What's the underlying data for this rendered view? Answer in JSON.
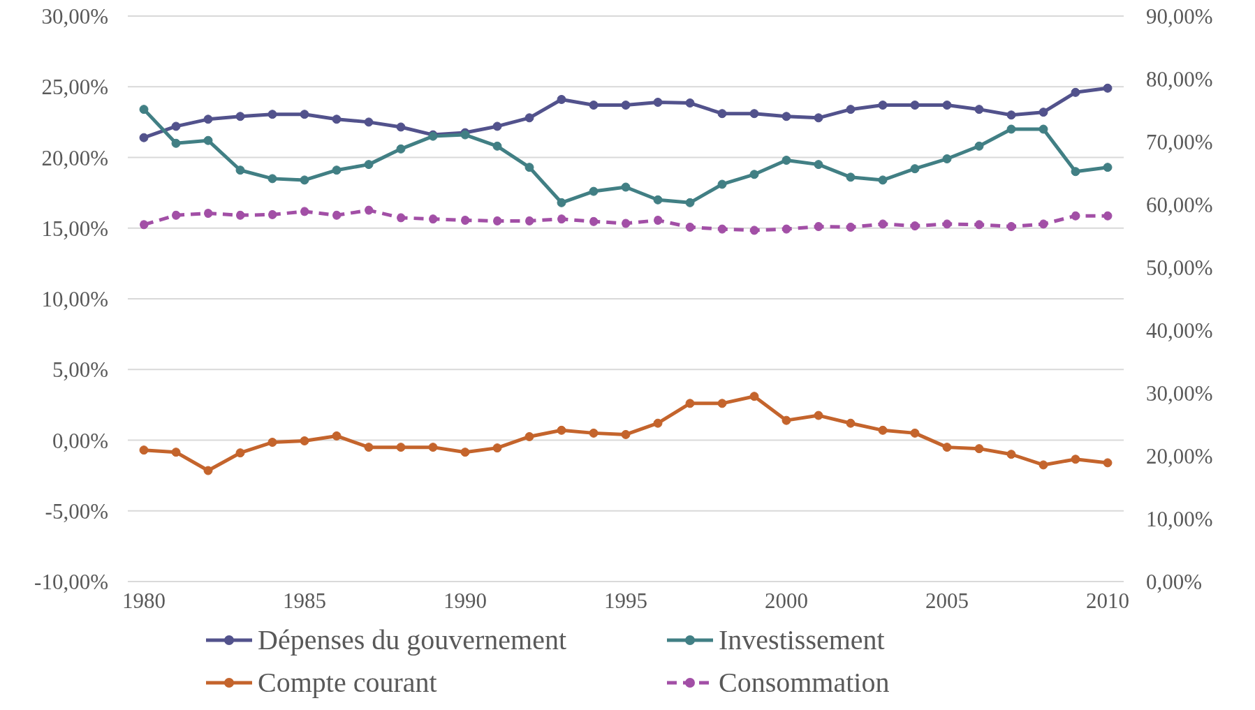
{
  "chart_data": {
    "type": "line",
    "x": [
      1980,
      1981,
      1982,
      1983,
      1984,
      1985,
      1986,
      1987,
      1988,
      1989,
      1990,
      1991,
      1992,
      1993,
      1994,
      1995,
      1996,
      1997,
      1998,
      1999,
      2000,
      2001,
      2002,
      2003,
      2004,
      2005,
      2006,
      2007,
      2008,
      2009,
      2010
    ],
    "xlim": [
      1979.5,
      2010.5
    ],
    "xticks": [
      1980,
      1985,
      1990,
      1995,
      2000,
      2005,
      2010
    ],
    "ylim": [
      -10,
      30
    ],
    "yticks": [
      {
        "value": -10,
        "label": "-10,00%"
      },
      {
        "value": -5,
        "label": "-5,00%"
      },
      {
        "value": 0,
        "label": "0,00%"
      },
      {
        "value": 5,
        "label": "5,00%"
      },
      {
        "value": 10,
        "label": "10,00%"
      },
      {
        "value": 15,
        "label": "15,00%"
      },
      {
        "value": 20,
        "label": "20,00%"
      },
      {
        "value": 25,
        "label": "25,00%"
      },
      {
        "value": 30,
        "label": "30,00%"
      }
    ],
    "y2lim": [
      0,
      90
    ],
    "y2ticks": [
      {
        "value": 0,
        "label": "0,00%"
      },
      {
        "value": 10,
        "label": "10,00%"
      },
      {
        "value": 20,
        "label": "20,00%"
      },
      {
        "value": 30,
        "label": "30,00%"
      },
      {
        "value": 40,
        "label": "40,00%"
      },
      {
        "value": 50,
        "label": "50,00%"
      },
      {
        "value": 60,
        "label": "60,00%"
      },
      {
        "value": 70,
        "label": "70,00%"
      },
      {
        "value": 80,
        "label": "80,00%"
      },
      {
        "value": 90,
        "label": "90,00%"
      }
    ],
    "grid": "y",
    "legend": "bottom",
    "marker": "circle",
    "series": [
      {
        "name": "Dépenses du gouvernement",
        "color": "#52528c",
        "line_style": "solid",
        "values": [
          21.4,
          22.2,
          22.7,
          22.9,
          23.05,
          23.05,
          22.7,
          22.5,
          22.15,
          21.6,
          21.75,
          22.2,
          22.8,
          24.1,
          23.7,
          23.7,
          23.9,
          23.85,
          23.1,
          23.1,
          22.9,
          22.8,
          23.4,
          23.7,
          23.7,
          23.7,
          23.4,
          23.0,
          23.2,
          24.6,
          24.9
        ]
      },
      {
        "name": "Investissement",
        "color": "#417f84",
        "line_style": "solid",
        "values": [
          23.4,
          21.0,
          21.2,
          19.1,
          18.5,
          18.4,
          19.1,
          19.5,
          20.6,
          21.5,
          21.6,
          20.8,
          19.3,
          16.8,
          17.6,
          17.9,
          17.0,
          16.8,
          18.1,
          18.8,
          19.8,
          19.5,
          18.6,
          18.4,
          19.2,
          19.9,
          20.8,
          22.0,
          22.0,
          19.0,
          19.3
        ]
      },
      {
        "name": "Compte courant",
        "color": "#c4642c",
        "line_style": "solid",
        "values": [
          -0.7,
          -0.85,
          -2.15,
          -0.9,
          -0.15,
          -0.05,
          0.3,
          -0.5,
          -0.5,
          -0.5,
          -0.85,
          -0.55,
          0.25,
          0.7,
          0.5,
          0.4,
          1.2,
          2.6,
          2.6,
          3.1,
          1.4,
          1.75,
          1.2,
          0.7,
          0.5,
          -0.5,
          -0.6,
          -1.0,
          -1.75,
          -1.35,
          -1.6
        ]
      },
      {
        "name": "Consommation",
        "color": "#a24fa6",
        "line_style": "dashed",
        "axis": "y2",
        "values": [
          56.8,
          58.3,
          58.6,
          58.3,
          58.4,
          58.9,
          58.3,
          59.1,
          57.9,
          57.7,
          57.5,
          57.4,
          57.4,
          57.7,
          57.3,
          57.0,
          57.5,
          56.4,
          56.1,
          55.9,
          56.1,
          56.5,
          56.4,
          56.9,
          56.6,
          56.9,
          56.8,
          56.5,
          56.9,
          58.2,
          58.2
        ]
      }
    ]
  }
}
